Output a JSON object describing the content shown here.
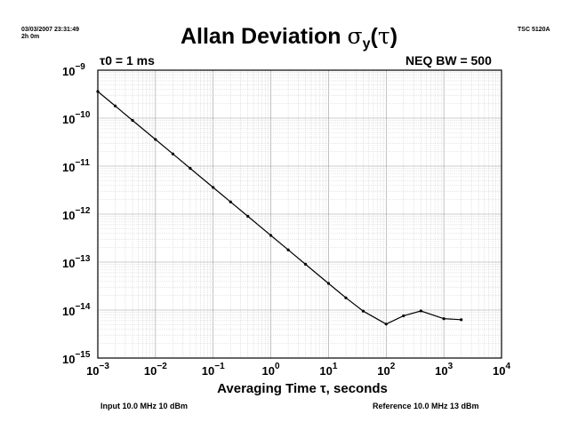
{
  "header": {
    "timestamp": "03/03/2007 23:31:49",
    "duration": "2h 0m",
    "instrument": "TSC 5120A"
  },
  "footer": {
    "input": "Input 10.0 MHz 10 dBm",
    "reference": "Reference 10.0 MHz 13 dBm"
  },
  "chart_data": {
    "type": "line",
    "title": "Allan Deviation σy(τ)",
    "xlabel": "Averaging Time τ, seconds",
    "ylabel": "",
    "scale": {
      "x": "log",
      "y": "log"
    },
    "xlim": [
      0.001,
      10000
    ],
    "ylim": [
      1e-15,
      1e-09
    ],
    "grid": true,
    "annotations": {
      "tau0": "τ0 = 1 ms",
      "neq_bw": "NEQ BW = 500"
    },
    "x_ticks": [
      {
        "base": "10",
        "exp": "−3"
      },
      {
        "base": "10",
        "exp": "−2"
      },
      {
        "base": "10",
        "exp": "−1"
      },
      {
        "base": "10",
        "exp": "0"
      },
      {
        "base": "10",
        "exp": "1"
      },
      {
        "base": "10",
        "exp": "2"
      },
      {
        "base": "10",
        "exp": "3"
      },
      {
        "base": "10",
        "exp": "4"
      }
    ],
    "y_ticks": [
      {
        "base": "10",
        "exp": "−9"
      },
      {
        "base": "10",
        "exp": "−10"
      },
      {
        "base": "10",
        "exp": "−11"
      },
      {
        "base": "10",
        "exp": "−12"
      },
      {
        "base": "10",
        "exp": "−13"
      },
      {
        "base": "10",
        "exp": "−14"
      },
      {
        "base": "10",
        "exp": "−15"
      }
    ],
    "series": [
      {
        "color": "#000000",
        "x": [
          0.001,
          0.002,
          0.004,
          0.01,
          0.02,
          0.04,
          0.1,
          0.2,
          0.4,
          1,
          2,
          4,
          10,
          20,
          40,
          100,
          200,
          400,
          1000,
          2000
        ],
        "y": [
          3.6e-10,
          1.8e-10,
          9e-11,
          3.6e-11,
          1.8e-11,
          9e-12,
          3.6e-12,
          1.8e-12,
          9e-13,
          3.6e-13,
          1.8e-13,
          9e-14,
          3.6e-14,
          1.8e-14,
          9.5e-15,
          5.1e-15,
          7.6e-15,
          9.6e-15,
          6.6e-15,
          6.3e-15
        ]
      }
    ]
  }
}
